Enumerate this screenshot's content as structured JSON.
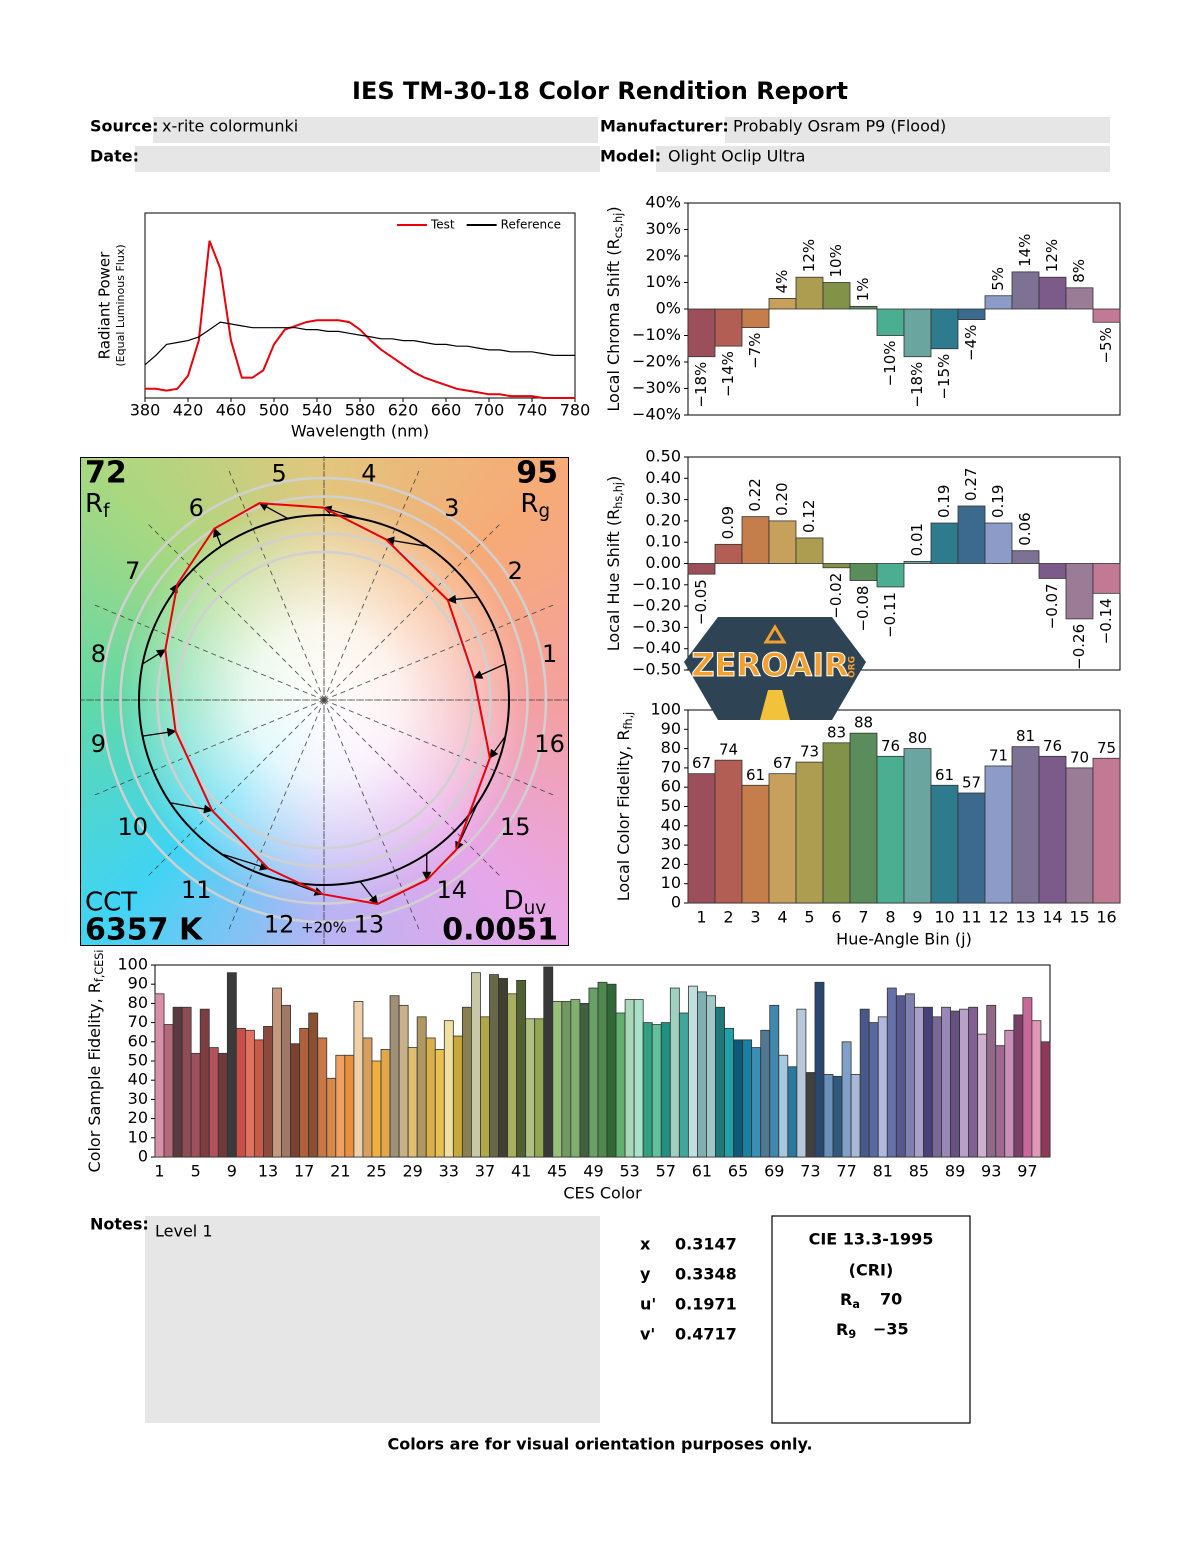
{
  "report": {
    "title": "IES TM-30-18 Color Rendition Report",
    "source_label": "Source:",
    "source": "x-rite colormunki",
    "manufacturer_label": "Manufacturer:",
    "manufacturer": "Probably Osram P9 (Flood)",
    "date_label": "Date:",
    "model_label": "Model:",
    "model": "Olight Oclip Ultra",
    "notes_label": "Notes:",
    "notes": "Level 1",
    "chromaticity": [
      [
        "x",
        0.3147
      ],
      [
        "y",
        0.3348
      ],
      [
        "u'",
        0.1971
      ],
      [
        "v'",
        0.4717
      ]
    ],
    "cri": {
      "title": "CIE 13.3-1995",
      "subtitle": "(CRI)",
      "ra_label": [
        "R",
        "a"
      ],
      "ra": 70,
      "r9_label": [
        "R",
        "9"
      ],
      "r9": "−35"
    },
    "footer": "Colors are for visual orientation purposes only."
  },
  "logo": {
    "text": "ZEROAIR",
    "suffix": "ORG"
  },
  "chart_data": [
    {
      "type": "line",
      "xlabel": "Wavelength (nm)",
      "ylabel": [
        "Radiant Power",
        "(Equal Luminous Flux)"
      ],
      "x": [
        380,
        390,
        400,
        410,
        420,
        430,
        440,
        450,
        460,
        470,
        480,
        490,
        500,
        510,
        520,
        530,
        540,
        550,
        560,
        570,
        580,
        590,
        600,
        610,
        620,
        630,
        640,
        650,
        660,
        670,
        680,
        690,
        700,
        710,
        720,
        730,
        740,
        750,
        760,
        770,
        780
      ],
      "xlim": [
        380,
        780
      ],
      "xticks": [
        380,
        420,
        460,
        500,
        540,
        580,
        620,
        660,
        700,
        740,
        780
      ],
      "ylim": [
        0,
        1
      ],
      "legend": "upper right",
      "series": [
        {
          "name": "Test",
          "color": "#e8000b",
          "values": [
            0.05,
            0.05,
            0.04,
            0.05,
            0.12,
            0.31,
            0.85,
            0.7,
            0.31,
            0.11,
            0.11,
            0.15,
            0.29,
            0.37,
            0.39,
            0.41,
            0.42,
            0.42,
            0.42,
            0.41,
            0.37,
            0.31,
            0.26,
            0.22,
            0.18,
            0.14,
            0.11,
            0.09,
            0.07,
            0.05,
            0.04,
            0.03,
            0.02,
            0.02,
            0.01,
            0.01,
            0.01,
            0,
            0,
            0,
            0
          ]
        },
        {
          "name": "Reference",
          "color": "#000000",
          "values": [
            0.18,
            0.23,
            0.29,
            0.3,
            0.31,
            0.33,
            0.37,
            0.41,
            0.4,
            0.39,
            0.38,
            0.38,
            0.38,
            0.38,
            0.38,
            0.37,
            0.37,
            0.36,
            0.36,
            0.35,
            0.34,
            0.33,
            0.32,
            0.32,
            0.31,
            0.31,
            0.3,
            0.29,
            0.29,
            0.28,
            0.28,
            0.27,
            0.26,
            0.26,
            0.25,
            0.25,
            0.25,
            0.24,
            0.23,
            0.23,
            0.23
          ]
        }
      ]
    },
    {
      "type": "bar",
      "ylabel": [
        "Local Chroma Shift (R",
        "cs,hj",
        ")"
      ],
      "values": [
        -18,
        -14,
        -7,
        4,
        12,
        10,
        1,
        -10,
        -18,
        -15,
        -4,
        5,
        14,
        12,
        8,
        -5
      ],
      "value_labels": [
        "−18%",
        "−14%",
        "−7%",
        "4%",
        "12%",
        "10%",
        "1%",
        "−10%",
        "−18%",
        "−15%",
        "−4%",
        "5%",
        "14%",
        "12%",
        "8%",
        "−5%"
      ],
      "colors": [
        "#9c4f5a",
        "#b35e55",
        "#c57d4b",
        "#c7a15b",
        "#ad9d51",
        "#829349",
        "#5b8d5c",
        "#4cae90",
        "#6aa59f",
        "#2d7b8d",
        "#3c6a8e",
        "#8d9bc8",
        "#7d7293",
        "#7c5a8a",
        "#9a7c96",
        "#c27993"
      ],
      "ylim": [
        -40,
        40
      ],
      "yticks": [
        {
          "value": -40,
          "label": "−40%"
        },
        {
          "value": -30,
          "label": "−30%"
        },
        {
          "value": -20,
          "label": "−20%"
        },
        {
          "value": -10,
          "label": "−10%"
        },
        {
          "value": 0,
          "label": "0%"
        },
        {
          "value": 10,
          "label": "10%"
        },
        {
          "value": 20,
          "label": "20%"
        },
        {
          "value": 30,
          "label": "30%"
        },
        {
          "value": 40,
          "label": "40%"
        }
      ]
    },
    {
      "type": "bar",
      "ylabel": [
        "Local Hue Shift (R",
        "hs,hj",
        ")"
      ],
      "values": [
        -0.05,
        0.09,
        0.22,
        0.2,
        0.12,
        -0.02,
        -0.08,
        -0.11,
        0.01,
        0.19,
        0.27,
        0.19,
        0.06,
        -0.07,
        -0.26,
        -0.14
      ],
      "value_labels": [
        "−0.05",
        "0.09",
        "0.22",
        "0.20",
        "0.12",
        "−0.02",
        "−0.08",
        "−0.11",
        "0.01",
        "0.19",
        "0.27",
        "0.19",
        "0.06",
        "−0.07",
        "−0.26",
        "−0.14"
      ],
      "colors": [
        "#9c4f5a",
        "#b35e55",
        "#c57d4b",
        "#c7a15b",
        "#ad9d51",
        "#829349",
        "#5b8d5c",
        "#4cae90",
        "#6aa59f",
        "#2d7b8d",
        "#3c6a8e",
        "#8d9bc8",
        "#7d7293",
        "#7c5a8a",
        "#9a7c96",
        "#c27993"
      ],
      "ylim": [
        -0.5,
        0.5
      ],
      "yticks": [
        {
          "value": -0.5,
          "label": "−0.50"
        },
        {
          "value": -0.4,
          "label": "−0.40"
        },
        {
          "value": -0.3,
          "label": "−0.30"
        },
        {
          "value": -0.2,
          "label": "−0.20"
        },
        {
          "value": -0.1,
          "label": "−0.10"
        },
        {
          "value": 0,
          "label": "0.00"
        },
        {
          "value": 0.1,
          "label": "0.10"
        },
        {
          "value": 0.2,
          "label": "0.20"
        },
        {
          "value": 0.3,
          "label": "0.30"
        },
        {
          "value": 0.4,
          "label": "0.40"
        },
        {
          "value": 0.5,
          "label": "0.50"
        }
      ]
    },
    {
      "type": "bar",
      "ylabel": [
        "Local Color Fidelity, R",
        "fh,j"
      ],
      "xlabel": "Hue-Angle Bin (j)",
      "categories": [
        1,
        2,
        3,
        4,
        5,
        6,
        7,
        8,
        9,
        10,
        11,
        12,
        13,
        14,
        15,
        16
      ],
      "values": [
        67,
        74,
        61,
        67,
        73,
        83,
        88,
        76,
        80,
        61,
        57,
        71,
        81,
        76,
        70,
        75
      ],
      "colors": [
        "#9c4f5a",
        "#b35e55",
        "#c57d4b",
        "#c7a15b",
        "#ad9d51",
        "#829349",
        "#5b8d5c",
        "#4cae90",
        "#6aa59f",
        "#2d7b8d",
        "#3c6a8e",
        "#8d9bc8",
        "#7d7293",
        "#7c5a8a",
        "#9a7c96",
        "#c27993"
      ],
      "ylim": [
        0,
        100
      ],
      "yticks": [
        0,
        10,
        20,
        30,
        40,
        50,
        60,
        70,
        80,
        90,
        100
      ]
    },
    {
      "type": "vector",
      "bins": [
        1,
        2,
        3,
        4,
        5,
        6,
        7,
        8,
        9,
        10,
        11,
        12,
        13,
        14,
        15,
        16
      ],
      "rf": 72,
      "rf_label": [
        "R",
        "f"
      ],
      "rg": 95,
      "rg_label": [
        "R",
        "g"
      ],
      "cct_label": "CCT",
      "cct": "6357 K",
      "duv_label": [
        "D",
        "uv"
      ],
      "duv": 0.0051,
      "scale_label": "+20%",
      "test_color": "#e8000b",
      "reference_color": "#000000"
    },
    {
      "type": "bar",
      "ylabel": [
        "Color Sample Fidelity, R",
        "f,CESi"
      ],
      "xlabel": "CES Color",
      "categories": [
        1,
        null,
        null,
        null,
        5,
        null,
        null,
        null,
        9,
        null,
        null,
        null,
        13,
        null,
        null,
        null,
        17,
        null,
        null,
        null,
        21,
        null,
        null,
        null,
        25,
        null,
        null,
        null,
        29,
        null,
        null,
        null,
        33,
        null,
        null,
        null,
        37,
        null,
        null,
        null,
        41,
        null,
        null,
        null,
        45,
        null,
        null,
        null,
        49,
        null,
        null,
        null,
        53,
        null,
        null,
        null,
        57,
        null,
        null,
        null,
        61,
        null,
        null,
        null,
        65,
        null,
        null,
        null,
        69,
        null,
        null,
        null,
        73,
        null,
        null,
        null,
        77,
        null,
        null,
        null,
        81,
        null,
        null,
        null,
        85,
        null,
        null,
        null,
        89,
        null,
        null,
        null,
        93,
        null,
        null,
        null,
        97,
        null,
        null
      ],
      "values": [
        85,
        69,
        78,
        78,
        54,
        77,
        57,
        54,
        96,
        67,
        66,
        61,
        68,
        88,
        79,
        59,
        67,
        75,
        62,
        41,
        53,
        53,
        81,
        62,
        50,
        56,
        84,
        79,
        57,
        73,
        62,
        56,
        71,
        63,
        78,
        96,
        73,
        95,
        93,
        85,
        92,
        72,
        72,
        99,
        81,
        81,
        82,
        80,
        88,
        91,
        90,
        75,
        82,
        82,
        70,
        69,
        70,
        88,
        75,
        89,
        86,
        84,
        78,
        67,
        61,
        61,
        57,
        66,
        79,
        53,
        47,
        77,
        44,
        91,
        43,
        42,
        60,
        43,
        77,
        70,
        73,
        88,
        84,
        85,
        78,
        78,
        73,
        78,
        76,
        77,
        78,
        64,
        79,
        58,
        66,
        74,
        83,
        71,
        60
      ],
      "colors": [
        "#d98fa8",
        "#b5687a",
        "#5a3a3e",
        "#8e4c55",
        "#a0505c",
        "#7c3c40",
        "#b4525c",
        "#6e3a3c",
        "#3a3a3a",
        "#c84e4a",
        "#e07060",
        "#c85a48",
        "#8a4a3e",
        "#c8987c",
        "#a07868",
        "#7a4030",
        "#b0603c",
        "#8a5030",
        "#c87848",
        "#d88848",
        "#f0a060",
        "#e89040",
        "#f0d0a8",
        "#d8a060",
        "#f0b040",
        "#e0a848",
        "#a09078",
        "#c8b088",
        "#e0c070",
        "#b09860",
        "#d8b048",
        "#e8c050",
        "#f0e0a0",
        "#c8a838",
        "#888050",
        "#c8c8a8",
        "#b0a848",
        "#686848",
        "#404030",
        "#a8b060",
        "#506030",
        "#b0c080",
        "#90a850",
        "#383838",
        "#98c078",
        "#709860",
        "#80b070",
        "#406040",
        "#68a068",
        "#508850",
        "#306838",
        "#60b070",
        "#a8d8b8",
        "#a8e0c8",
        "#30a080",
        "#60c0a0",
        "#209080",
        "#a0d0c0",
        "#40a898",
        "#c0e0e0",
        "#80b0b0",
        "#a0c8c8",
        "#207878",
        "#20a0a8",
        "#105878",
        "#1880a0",
        "#3890b8",
        "#507890",
        "#4088b0",
        "#a8c8e0",
        "#2878a0",
        "#b8c8d8",
        "#404040",
        "#284870",
        "#6890b8",
        "#305880",
        "#80a0c8",
        "#a8b8d8",
        "#485888",
        "#5868a0",
        "#b0b8e0",
        "#6870a8",
        "#585890",
        "#8080b0",
        "#a8a0c8",
        "#484078",
        "#786898",
        "#9888b8",
        "#685080",
        "#b8a0c8",
        "#806090",
        "#d0b0d0",
        "#906888",
        "#a06890",
        "#c890b8",
        "#784068",
        "#c86898",
        "#e098b8",
        "#903858"
      ],
      "ylim": [
        0,
        100
      ],
      "yticks": [
        0,
        10,
        20,
        30,
        40,
        50,
        60,
        70,
        80,
        90,
        100
      ]
    }
  ]
}
